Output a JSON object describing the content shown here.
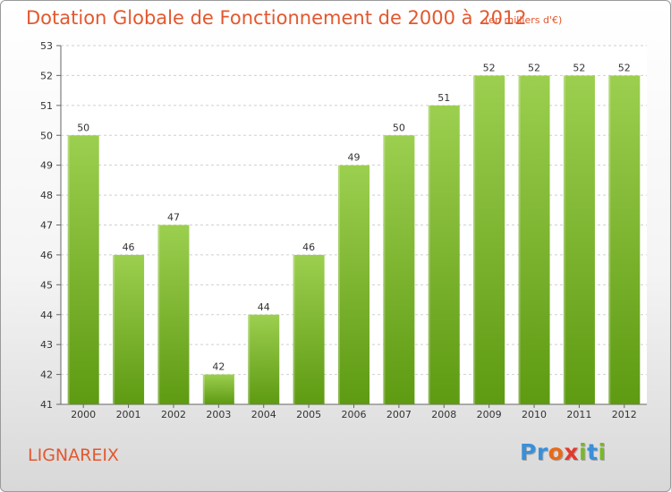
{
  "header": {
    "title": "Dotation Globale de Fonctionnement de 2000 à 2012",
    "unit_note": "(en milliers d'€)"
  },
  "footer": {
    "commune": "LIGNAREIX",
    "logo_text": "Proxiti",
    "logo_letters": [
      {
        "ch": "P",
        "color": "#3a8fd9"
      },
      {
        "ch": "r",
        "color": "#3a8fd9"
      },
      {
        "ch": "o",
        "color": "#e86a1a"
      },
      {
        "ch": "x",
        "color": "#e23a2e"
      },
      {
        "ch": "i",
        "color": "#7ab829"
      },
      {
        "ch": "t",
        "color": "#3a8fd9"
      },
      {
        "ch": "i",
        "color": "#7ab829"
      }
    ]
  },
  "chart_data": {
    "type": "bar",
    "categories": [
      "2000",
      "2001",
      "2002",
      "2003",
      "2004",
      "2005",
      "2006",
      "2007",
      "2008",
      "2009",
      "2010",
      "2011",
      "2012"
    ],
    "values": [
      50,
      46,
      47,
      42,
      44,
      46,
      49,
      50,
      51,
      52,
      52,
      52,
      52
    ],
    "ylim": [
      41,
      53
    ],
    "yticks": [
      41,
      42,
      43,
      44,
      45,
      46,
      47,
      48,
      49,
      50,
      51,
      52,
      53
    ],
    "grid": true,
    "bar_color_top": "#9ccf4f",
    "bar_color_bottom": "#5e9a12",
    "title_color": "#e4572e"
  }
}
